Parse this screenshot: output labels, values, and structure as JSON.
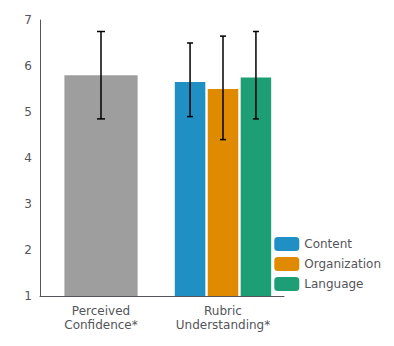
{
  "chart_data": {
    "type": "bar",
    "categories": [
      "Perceived\nConfidence*",
      "Rubric\nUnderstanding*"
    ],
    "series": [
      {
        "color": "#9E9E9E",
        "values": [
          5.8,
          null
        ],
        "error_low": [
          0.95,
          null
        ],
        "error_high": [
          0.95,
          null
        ]
      },
      {
        "name": "Content",
        "color": "#1F8FC4",
        "values": [
          null,
          5.65
        ],
        "error_low": [
          null,
          0.75
        ],
        "error_high": [
          null,
          0.85
        ]
      },
      {
        "name": "Organization",
        "color": "#E08A00",
        "values": [
          null,
          5.5
        ],
        "error_low": [
          null,
          1.1
        ],
        "error_high": [
          null,
          1.15
        ]
      },
      {
        "name": "Language",
        "color": "#1D9E74",
        "values": [
          null,
          5.75
        ],
        "error_low": [
          null,
          0.9
        ],
        "error_high": [
          null,
          1.0
        ]
      }
    ],
    "ylim": [
      1,
      7
    ],
    "yticks": [
      1,
      2,
      3,
      4,
      5,
      6,
      7
    ],
    "grid": false,
    "legend": "lower right"
  }
}
